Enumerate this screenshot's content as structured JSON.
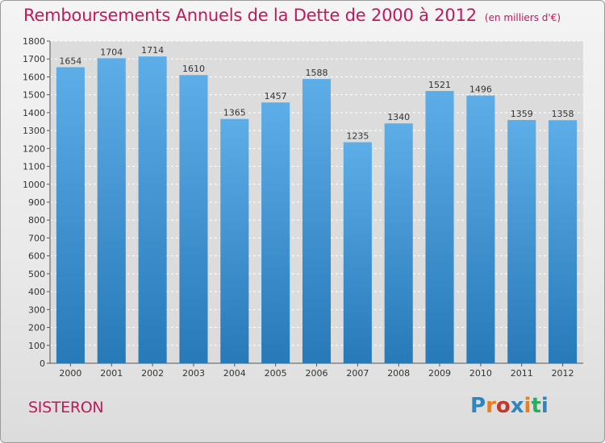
{
  "title": "Remboursements Annuels de la Dette de 2000 à 2012",
  "unit": "(en milliers d'€)",
  "city": "SISTERON",
  "logo": {
    "text": "Proxiti",
    "colors": [
      "#2e86c1",
      "#e67e22",
      "#c0392b",
      "#2e86c1",
      "#e67e22",
      "#27ae60",
      "#2e86c1"
    ]
  },
  "colors": {
    "bar_top": "#5dade8",
    "bar_bottom": "#2779b8",
    "title": "#c2185b"
  },
  "chart_data": {
    "type": "bar",
    "categories": [
      "2000",
      "2001",
      "2002",
      "2003",
      "2004",
      "2005",
      "2006",
      "2007",
      "2008",
      "2009",
      "2010",
      "2011",
      "2012"
    ],
    "values": [
      1654,
      1704,
      1714,
      1610,
      1365,
      1457,
      1588,
      1235,
      1340,
      1521,
      1496,
      1359,
      1358
    ],
    "ylim": [
      0,
      1800
    ],
    "yticks": [
      0,
      100,
      200,
      300,
      400,
      500,
      600,
      700,
      800,
      900,
      1000,
      1100,
      1200,
      1300,
      1400,
      1500,
      1600,
      1700,
      1800
    ],
    "grid": true,
    "legend": "none"
  }
}
